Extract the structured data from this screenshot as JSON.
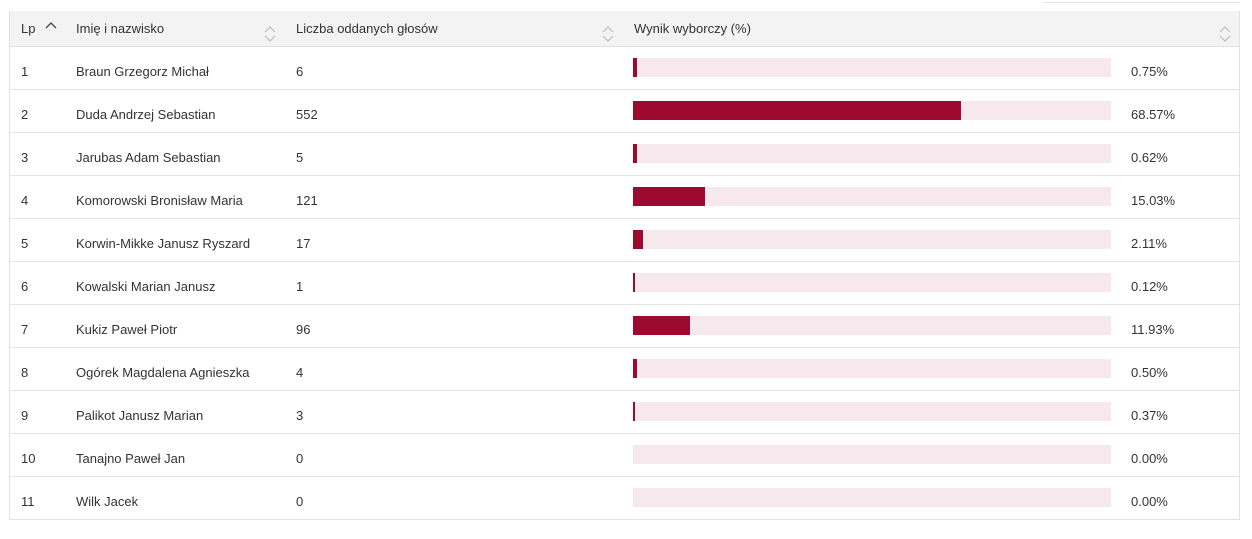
{
  "table": {
    "headers": {
      "lp": "Lp",
      "name": "Imię i nazwisko",
      "votes": "Liczba oddanych głosów",
      "result": "Wynik wyborczy (%)"
    },
    "rows": [
      {
        "lp": "1",
        "name": "Braun Grzegorz Michał",
        "votes": "6",
        "pct_label": "0.75%",
        "pct": 0.75
      },
      {
        "lp": "2",
        "name": "Duda Andrzej Sebastian",
        "votes": "552",
        "pct_label": "68.57%",
        "pct": 68.57
      },
      {
        "lp": "3",
        "name": "Jarubas Adam Sebastian",
        "votes": "5",
        "pct_label": "0.62%",
        "pct": 0.62
      },
      {
        "lp": "4",
        "name": "Komorowski Bronisław Maria",
        "votes": "121",
        "pct_label": "15.03%",
        "pct": 15.03
      },
      {
        "lp": "5",
        "name": "Korwin-Mikke Janusz Ryszard",
        "votes": "17",
        "pct_label": "2.11%",
        "pct": 2.11
      },
      {
        "lp": "6",
        "name": "Kowalski Marian Janusz",
        "votes": "1",
        "pct_label": "0.12%",
        "pct": 0.12
      },
      {
        "lp": "7",
        "name": "Kukiz Paweł Piotr",
        "votes": "96",
        "pct_label": "11.93%",
        "pct": 11.93
      },
      {
        "lp": "8",
        "name": "Ogórek Magdalena Agnieszka",
        "votes": "4",
        "pct_label": "0.50%",
        "pct": 0.5
      },
      {
        "lp": "9",
        "name": "Palikot Janusz Marian",
        "votes": "3",
        "pct_label": "0.37%",
        "pct": 0.37
      },
      {
        "lp": "10",
        "name": "Tanajno Paweł Jan",
        "votes": "0",
        "pct_label": "0.00%",
        "pct": 0
      },
      {
        "lp": "11",
        "name": "Wilk Jacek",
        "votes": "0",
        "pct_label": "0.00%",
        "pct": 0
      }
    ]
  },
  "icons": {
    "lp_sort": "chevron-up-icon",
    "column_sort": "sort-updown-icon"
  },
  "colors": {
    "bar_fill": "#9c0a30",
    "bar_track": "#f7e8ed",
    "header_bg": "#f3f3f3"
  }
}
